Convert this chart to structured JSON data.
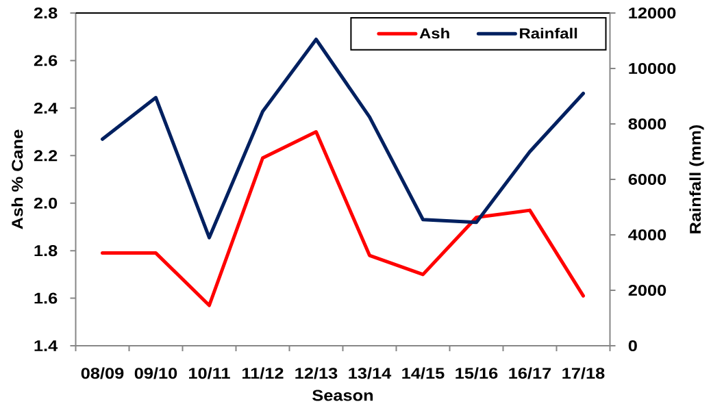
{
  "chart_data": {
    "type": "line",
    "xlabel": "Season",
    "ylabel": "Ash % Cane",
    "y2label": "Rainfall (mm)",
    "categories": [
      "08/09",
      "09/10",
      "10/11",
      "11/12",
      "12/13",
      "13/14",
      "14/15",
      "15/16",
      "16/17",
      "17/18"
    ],
    "series": [
      {
        "name": "Ash",
        "color": "#ff0000",
        "values": [
          1.79,
          1.79,
          1.57,
          2.19,
          2.3,
          1.78,
          1.7,
          1.94,
          1.97,
          1.61
        ]
      },
      {
        "name": "Rainfall",
        "color": "#002060",
        "axis": "y2",
        "values": [
          7450,
          8950,
          3900,
          8450,
          11050,
          8250,
          4550,
          4450,
          7000,
          9100
        ]
      }
    ],
    "ylim": [
      1.4,
      2.8
    ],
    "yticks": [
      1.4,
      1.6,
      1.8,
      {
        "value": 2,
        "label": "2.0"
      },
      2.2,
      2.4,
      2.6,
      2.8
    ],
    "y2lim": [
      0,
      12000
    ],
    "y2ticks": [
      0,
      2000,
      4000,
      6000,
      8000,
      10000,
      12000
    ],
    "legend": "top right"
  }
}
